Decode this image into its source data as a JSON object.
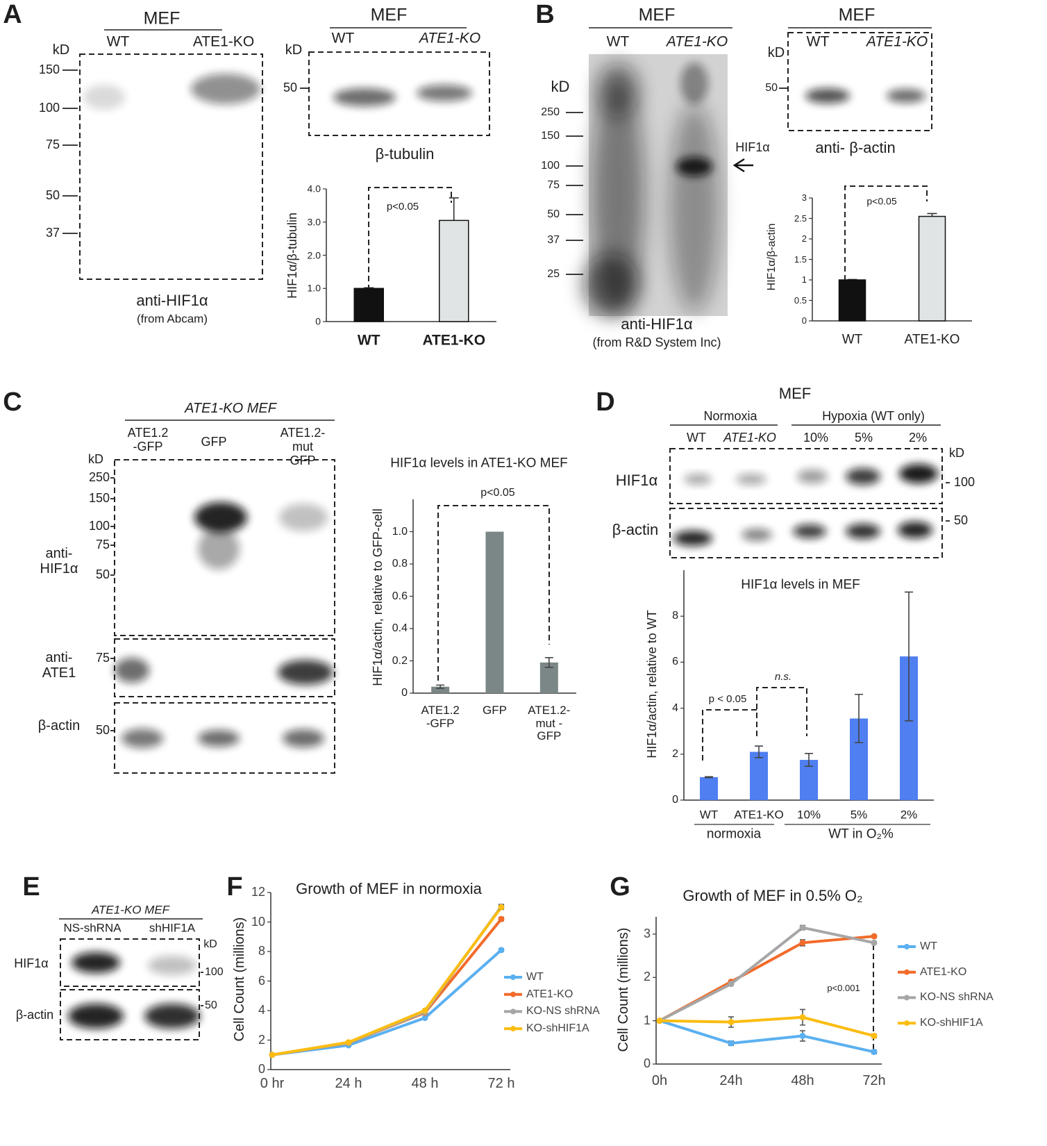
{
  "figure": {
    "A": {
      "label": "A",
      "blot1": {
        "group": "MEF",
        "lanes": [
          "WT",
          "ATE1-KO"
        ],
        "unit": "kD",
        "markers": [
          150,
          100,
          75,
          50,
          37
        ],
        "caption": "anti-HIF1α",
        "source": "(from Abcam)"
      },
      "blot2": {
        "group": "MEF",
        "lanes": [
          "WT",
          "ATE1-KO"
        ],
        "unit": "kD",
        "markers": [
          50
        ],
        "caption": "β-tubulin"
      }
    },
    "B": {
      "label": "B",
      "blot1": {
        "group": "MEF",
        "lanes": [
          "WT",
          "ATE1-KO"
        ],
        "unit": "kD",
        "markers": [
          250,
          150,
          100,
          75,
          50,
          37,
          25
        ],
        "band_label": "HIF1α",
        "caption": "anti-HIF1α",
        "source": "(from R&D System Inc)"
      },
      "blot2": {
        "group": "MEF",
        "lanes": [
          "WT",
          "ATE1-KO"
        ],
        "unit": "kD",
        "markers": [
          50
        ],
        "caption": "anti- β-actin"
      }
    },
    "C": {
      "label": "C",
      "blot": {
        "group": "ATE1-KO  MEF",
        "lanes": [
          "ATE1.2 -GFP",
          "GFP",
          "ATE1.2-mut GFP"
        ],
        "unit": "kD",
        "rows": [
          {
            "label": "anti- HIF1α",
            "markers": [
              250,
              150,
              100,
              75,
              50
            ]
          },
          {
            "label": "anti- ATE1",
            "markers": [
              75
            ]
          },
          {
            "label": "β-actin",
            "markers": [
              50
            ]
          }
        ]
      }
    },
    "D": {
      "label": "D",
      "blot": {
        "group": "MEF",
        "conditions": [
          "Normoxia",
          "Hypoxia (WT only)"
        ],
        "lanes": [
          "WT",
          "ATE1-KO",
          "10%",
          "5%",
          "2%"
        ],
        "unit": "kD",
        "rows": [
          {
            "label": "HIF1α",
            "markers": [
              100
            ]
          },
          {
            "label": "β-actin",
            "markers": [
              50
            ]
          }
        ]
      }
    },
    "E": {
      "label": "E",
      "blot": {
        "group": "ATE1-KO MEF",
        "lanes": [
          "NS-shRNA",
          "shHIF1A"
        ],
        "unit": "kD",
        "rows": [
          {
            "label": "HIF1α",
            "markers": [
              100
            ]
          },
          {
            "label": "β-actin",
            "markers": [
              50
            ]
          }
        ]
      }
    },
    "F": {
      "label": "F"
    },
    "G": {
      "label": "G"
    }
  },
  "chart_data": [
    {
      "type": "bar",
      "categories": [
        "WT",
        "ATE1-KO"
      ],
      "values": [
        1.0,
        3.05
      ],
      "errors": [
        0.02,
        0.68
      ],
      "colors": [
        "#111111",
        "#e1e4e4"
      ],
      "ylabel": "HIF1α/β-tubulin",
      "ylim": [
        0,
        4
      ],
      "yticks": [
        0,
        {
          "value": 1,
          "label": "1.0"
        },
        {
          "value": 2,
          "label": "2.0"
        },
        {
          "value": 3,
          "label": "3.0"
        },
        {
          "value": 4,
          "label": "4.0"
        }
      ],
      "annotations": [
        "p<0.05"
      ]
    },
    {
      "type": "bar",
      "categories": [
        "WT",
        "ATE1-KO"
      ],
      "values": [
        1.0,
        2.55
      ],
      "errors": [
        0.01,
        0.07
      ],
      "colors": [
        "#111111",
        "#e1e4e4"
      ],
      "ylabel": "HIF1α/β-actin",
      "ylim": [
        0,
        3
      ],
      "yticks": [
        0,
        0.5,
        1,
        1.5,
        2,
        2.5,
        3
      ],
      "annotations": [
        "p<0.05"
      ]
    },
    {
      "type": "bar",
      "title": "HIF1α levels in ATE1-KO MEF",
      "categories": [
        "ATE1.2 -GFP",
        "GFP",
        "ATE1.2-mut -GFP"
      ],
      "values": [
        0.04,
        1.0,
        0.19
      ],
      "errors": [
        0.01,
        0.0,
        0.03
      ],
      "color": "#7b8787",
      "ylabel": "HIF1α/actin, relative to GFP-cell",
      "ylim": [
        0,
        1.2
      ],
      "yticks": [
        0,
        0.2,
        0.4,
        0.6,
        0.8,
        {
          "value": 1,
          "label": "1.0"
        }
      ],
      "annotations": [
        "p<0.05"
      ]
    },
    {
      "type": "bar",
      "title": "HIF1α levels in MEF",
      "categories": [
        "WT",
        "ATE1-KO",
        "10%",
        "5%",
        "2%"
      ],
      "groups": [
        "normoxia",
        "WT in O₂%"
      ],
      "values": [
        1.0,
        2.1,
        1.75,
        3.55,
        6.25
      ],
      "errors": [
        0.02,
        0.25,
        0.28,
        1.05,
        2.8
      ],
      "color": "#4f7ff0",
      "ylabel": "HIF1α/actin, relative to WT",
      "ylim": [
        0,
        10
      ],
      "yticks": [
        0,
        2,
        4,
        6,
        8
      ],
      "annotations": [
        "p < 0.05",
        "n.s."
      ]
    },
    {
      "type": "line",
      "title": "Growth of MEF in normoxia",
      "categories": [
        "0 hr",
        "24 h",
        "48 h",
        "72 h"
      ],
      "ylabel": "Cell Count (millions)",
      "ylim": [
        0,
        12
      ],
      "yticks": [
        0,
        2,
        4,
        6,
        8,
        10,
        12
      ],
      "legend": "right",
      "series": [
        {
          "name": "WT",
          "color": "#5ab0f0",
          "values": [
            1,
            1.65,
            3.5,
            8.1
          ],
          "errors": [
            0,
            0,
            0,
            0.1
          ]
        },
        {
          "name": "ATE1-KO",
          "color": "#f26b2a",
          "values": [
            1,
            1.8,
            3.85,
            10.2
          ],
          "errors": [
            0,
            0,
            0,
            0.12
          ]
        },
        {
          "name": "KO-NS shRNA",
          "color": "#a6a6a6",
          "values": [
            1,
            1.8,
            3.9,
            11.05
          ],
          "errors": [
            0,
            0,
            0,
            0.15
          ]
        },
        {
          "name": "KO-shHIF1A",
          "color": "#fbbd13",
          "values": [
            1,
            1.85,
            4.0,
            11.0
          ],
          "errors": [
            0,
            0,
            0,
            0.15
          ]
        }
      ]
    },
    {
      "type": "line",
      "title": "Growth of MEF in 0.5% O₂",
      "categories": [
        "0h",
        "24h",
        "48h",
        "72h"
      ],
      "ylabel": "Cell Count (millions)",
      "ylim": [
        0,
        3.4
      ],
      "yticks": [
        0,
        1,
        2,
        3
      ],
      "legend": "right",
      "annotations": [
        "p<0.001"
      ],
      "series": [
        {
          "name": "WT",
          "color": "#5ab0f0",
          "values": [
            1,
            0.48,
            0.65,
            0.28
          ],
          "errors": [
            0,
            0.05,
            0.12,
            0.04
          ]
        },
        {
          "name": "ATE1-KO",
          "color": "#f26b2a",
          "values": [
            1,
            1.9,
            2.8,
            2.95
          ],
          "errors": [
            0,
            0.03,
            0.07,
            0.03
          ]
        },
        {
          "name": "KO-NS shRNA",
          "color": "#a6a6a6",
          "values": [
            1,
            1.85,
            3.15,
            2.8
          ],
          "errors": [
            0,
            0.03,
            0.05,
            0.03
          ]
        },
        {
          "name": "KO-shHIF1A",
          "color": "#fbbd13",
          "values": [
            1,
            0.97,
            1.08,
            0.65
          ],
          "errors": [
            0,
            0.12,
            0.18,
            0.04
          ]
        }
      ]
    }
  ]
}
